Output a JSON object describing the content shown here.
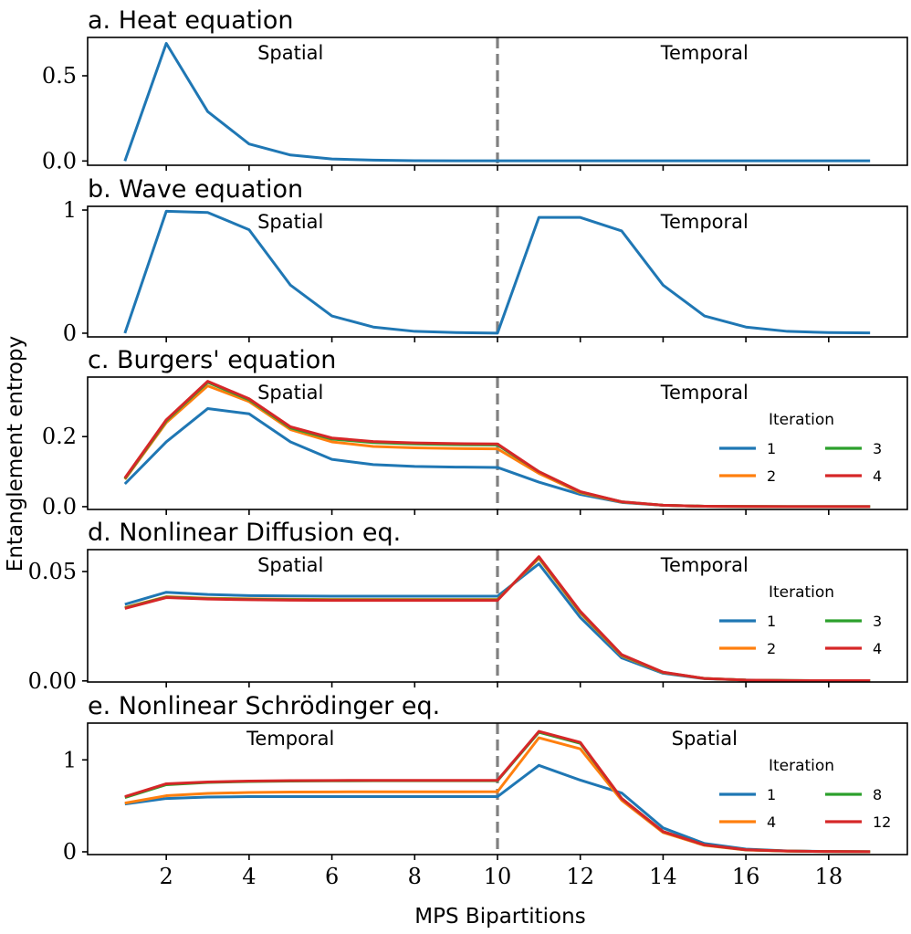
{
  "figure": {
    "ylabel": "Entanglement entropy",
    "xlabel": "MPS Bipartitions",
    "xlim": [
      0.1,
      19.9
    ],
    "xticks": [
      2,
      4,
      6,
      8,
      10,
      12,
      14,
      16,
      18
    ],
    "divider_x": 10
  },
  "chart_data": [
    {
      "type": "line",
      "panel": "a",
      "title": "a. Heat equation",
      "regions": [
        {
          "label": "Spatial",
          "x": 5
        },
        {
          "label": "Temporal",
          "x": 15
        }
      ],
      "ylim": [
        -0.025,
        0.725
      ],
      "yticks": [
        {
          "value": 0,
          "label": "0.0"
        },
        {
          "value": 0.5,
          "label": "0.5"
        }
      ],
      "x": [
        1,
        2,
        3,
        4,
        5,
        6,
        7,
        8,
        9,
        10,
        11,
        12,
        13,
        14,
        15,
        16,
        17,
        18,
        19
      ],
      "series": [
        {
          "name": "Heat",
          "color": "#1f77b4",
          "values": [
            0.0,
            0.69,
            0.29,
            0.1,
            0.035,
            0.012,
            0.005,
            0.002,
            0.001,
            0.001,
            0.001,
            0.001,
            0.001,
            0.001,
            0.001,
            0.001,
            0.001,
            0.001,
            0.001
          ]
        }
      ]
    },
    {
      "type": "line",
      "panel": "b",
      "title": "b. Wave equation",
      "regions": [
        {
          "label": "Spatial",
          "x": 5
        },
        {
          "label": "Temporal",
          "x": 15
        }
      ],
      "ylim": [
        -0.03,
        1.03
      ],
      "yticks": [
        {
          "value": 0,
          "label": "0"
        },
        {
          "value": 1,
          "label": "1"
        }
      ],
      "x": [
        1,
        2,
        3,
        4,
        5,
        6,
        7,
        8,
        9,
        10,
        11,
        12,
        13,
        14,
        15,
        16,
        17,
        18,
        19
      ],
      "series": [
        {
          "name": "Wave",
          "color": "#1f77b4",
          "values": [
            0.0,
            0.99,
            0.98,
            0.84,
            0.39,
            0.14,
            0.05,
            0.015,
            0.005,
            0.001,
            0.94,
            0.94,
            0.83,
            0.39,
            0.14,
            0.05,
            0.015,
            0.005,
            0.002
          ]
        }
      ]
    },
    {
      "type": "line",
      "panel": "c",
      "title": "c. Burgers' equation",
      "regions": [
        {
          "label": "Spatial",
          "x": 5
        },
        {
          "label": "Temporal",
          "x": 15
        }
      ],
      "ylim": [
        -0.008,
        0.37
      ],
      "yticks": [
        {
          "value": 0,
          "label": "0.0"
        },
        {
          "value": 0.2,
          "label": "0.2"
        }
      ],
      "legend": {
        "title": "Iteration",
        "position": "right"
      },
      "x": [
        1,
        2,
        3,
        4,
        5,
        6,
        7,
        8,
        9,
        10,
        11,
        12,
        13,
        14,
        15,
        16,
        17,
        18,
        19
      ],
      "series": [
        {
          "name": "1",
          "color": "#1f77b4",
          "values": [
            0.065,
            0.185,
            0.28,
            0.265,
            0.185,
            0.135,
            0.12,
            0.115,
            0.113,
            0.112,
            0.07,
            0.035,
            0.012,
            0.004,
            0.001,
            0.0005,
            0.0003,
            0.0002,
            0.0001
          ]
        },
        {
          "name": "2",
          "color": "#ff7f0e",
          "values": [
            0.078,
            0.24,
            0.345,
            0.3,
            0.22,
            0.185,
            0.172,
            0.168,
            0.166,
            0.165,
            0.095,
            0.04,
            0.013,
            0.004,
            0.001,
            0.0005,
            0.0003,
            0.0002,
            0.0001
          ]
        },
        {
          "name": "3",
          "color": "#2ca02c",
          "values": [
            0.08,
            0.245,
            0.355,
            0.305,
            0.225,
            0.193,
            0.183,
            0.179,
            0.177,
            0.176,
            0.1,
            0.042,
            0.014,
            0.004,
            0.001,
            0.0005,
            0.0003,
            0.0002,
            0.0001
          ]
        },
        {
          "name": "4",
          "color": "#d62728",
          "values": [
            0.082,
            0.248,
            0.358,
            0.308,
            0.228,
            0.196,
            0.186,
            0.182,
            0.18,
            0.179,
            0.1,
            0.043,
            0.014,
            0.004,
            0.001,
            0.0005,
            0.0003,
            0.0002,
            0.0001
          ]
        }
      ]
    },
    {
      "type": "line",
      "panel": "d",
      "title": "d. Nonlinear Diffusion eq.",
      "regions": [
        {
          "label": "Spatial",
          "x": 5
        },
        {
          "label": "Temporal",
          "x": 15
        }
      ],
      "ylim": [
        -0.0005,
        0.06
      ],
      "yticks": [
        {
          "value": 0,
          "label": "0.00"
        },
        {
          "value": 0.05,
          "label": "0.05"
        }
      ],
      "legend": {
        "title": "Iteration",
        "position": "right"
      },
      "x": [
        1,
        2,
        3,
        4,
        5,
        6,
        7,
        8,
        9,
        10,
        11,
        12,
        13,
        14,
        15,
        16,
        17,
        18,
        19
      ],
      "series": [
        {
          "name": "1",
          "color": "#1f77b4",
          "values": [
            0.035,
            0.0405,
            0.0395,
            0.039,
            0.0388,
            0.0387,
            0.0387,
            0.0387,
            0.0387,
            0.0387,
            0.0535,
            0.029,
            0.0105,
            0.0035,
            0.001,
            0.0004,
            0.0002,
            0.0001,
            0.0001
          ]
        },
        {
          "name": "2",
          "color": "#ff7f0e",
          "values": [
            0.0335,
            0.0385,
            0.0378,
            0.0375,
            0.0373,
            0.0372,
            0.0372,
            0.0372,
            0.0372,
            0.0372,
            0.056,
            0.031,
            0.0115,
            0.0038,
            0.0011,
            0.0004,
            0.0002,
            0.0001,
            0.0001
          ]
        },
        {
          "name": "3",
          "color": "#2ca02c",
          "values": [
            0.0333,
            0.0383,
            0.0376,
            0.0373,
            0.0371,
            0.037,
            0.037,
            0.037,
            0.037,
            0.037,
            0.0565,
            0.0315,
            0.0118,
            0.0039,
            0.0011,
            0.0004,
            0.0002,
            0.0001,
            0.0001
          ]
        },
        {
          "name": "4",
          "color": "#d62728",
          "values": [
            0.0331,
            0.0381,
            0.0374,
            0.0371,
            0.0369,
            0.0368,
            0.0368,
            0.0368,
            0.0368,
            0.0368,
            0.0568,
            0.0318,
            0.012,
            0.004,
            0.0011,
            0.0004,
            0.0002,
            0.0001,
            0.0001
          ]
        }
      ]
    },
    {
      "type": "line",
      "panel": "e",
      "title": "e. Nonlinear Schrödinger eq.",
      "regions": [
        {
          "label": "Temporal",
          "x": 5
        },
        {
          "label": "Spatial",
          "x": 15
        }
      ],
      "ylim": [
        -0.03,
        1.4
      ],
      "yticks": [
        {
          "value": 0,
          "label": "0"
        },
        {
          "value": 1,
          "label": "1"
        }
      ],
      "legend": {
        "title": "Iteration",
        "position": "right"
      },
      "x": [
        1,
        2,
        3,
        4,
        5,
        6,
        7,
        8,
        9,
        10,
        11,
        12,
        13,
        14,
        15,
        16,
        17,
        18,
        19
      ],
      "series": [
        {
          "name": "1",
          "color": "#1f77b4",
          "values": [
            0.52,
            0.58,
            0.595,
            0.6,
            0.6,
            0.6,
            0.6,
            0.6,
            0.6,
            0.6,
            0.94,
            0.78,
            0.64,
            0.26,
            0.09,
            0.03,
            0.01,
            0.004,
            0.001
          ]
        },
        {
          "name": "4",
          "color": "#ff7f0e",
          "values": [
            0.53,
            0.61,
            0.635,
            0.645,
            0.65,
            0.652,
            0.653,
            0.653,
            0.653,
            0.654,
            1.24,
            1.12,
            0.56,
            0.21,
            0.07,
            0.02,
            0.007,
            0.003,
            0.001
          ]
        },
        {
          "name": "8",
          "color": "#2ca02c",
          "values": [
            0.59,
            0.73,
            0.755,
            0.765,
            0.77,
            0.772,
            0.773,
            0.773,
            0.773,
            0.773,
            1.3,
            1.18,
            0.58,
            0.22,
            0.075,
            0.022,
            0.008,
            0.003,
            0.001
          ]
        },
        {
          "name": "12",
          "color": "#d62728",
          "values": [
            0.6,
            0.74,
            0.76,
            0.77,
            0.775,
            0.776,
            0.777,
            0.777,
            0.777,
            0.778,
            1.31,
            1.19,
            0.58,
            0.22,
            0.075,
            0.022,
            0.008,
            0.003,
            0.001
          ]
        }
      ]
    }
  ]
}
